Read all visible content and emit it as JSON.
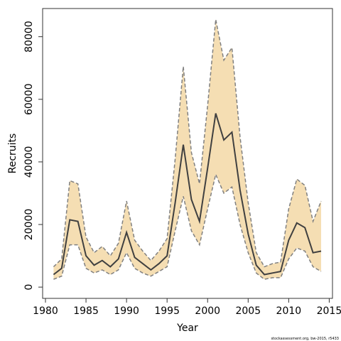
{
  "chart_data": {
    "type": "line",
    "xlabel": "Year",
    "ylabel": "Recruits",
    "footnote": "stockassessment.org, bw-2015, r5433",
    "x": [
      1981,
      1982,
      1983,
      1984,
      1985,
      1986,
      1987,
      1988,
      1989,
      1990,
      1991,
      1992,
      1993,
      1994,
      1995,
      1996,
      1997,
      1998,
      1999,
      2000,
      2001,
      2002,
      2003,
      2004,
      2005,
      2006,
      2007,
      2008,
      2009,
      2010,
      2011,
      2012,
      2013,
      2014
    ],
    "values": [
      4000,
      6000,
      21500,
      21000,
      10000,
      7000,
      8500,
      6500,
      9000,
      17500,
      9500,
      7500,
      5500,
      7500,
      10000,
      27000,
      45500,
      28000,
      21000,
      38000,
      55500,
      47000,
      49500,
      31000,
      17000,
      7000,
      4000,
      4500,
      5000,
      15000,
      20500,
      19000,
      11000,
      11500
    ],
    "lower": [
      2500,
      3500,
      13500,
      13500,
      6000,
      4500,
      5500,
      4000,
      5500,
      11000,
      6000,
      4500,
      3500,
      5000,
      6500,
      18000,
      29000,
      18000,
      13500,
      25000,
      36000,
      30000,
      32000,
      20000,
      11000,
      4500,
      2500,
      3000,
      3000,
      9000,
      12500,
      11500,
      6500,
      5000
    ],
    "upper": [
      6500,
      9000,
      34000,
      33000,
      16000,
      11000,
      13000,
      10000,
      14000,
      27500,
      15000,
      11500,
      8500,
      11500,
      15500,
      41000,
      70500,
      43000,
      33000,
      58000,
      85500,
      72500,
      76500,
      48000,
      27000,
      11000,
      6500,
      7500,
      8000,
      25000,
      34500,
      32500,
      21000,
      27500
    ],
    "color": "#404040",
    "bound_color": "#808080",
    "band_color": "#f5deb3",
    "xlim": [
      1979.65,
      2015.4
    ],
    "ylim": [
      -3600,
      89000
    ],
    "xticks": [
      1980,
      1985,
      1990,
      1995,
      2000,
      2005,
      2010,
      2015
    ],
    "yticks": [
      0,
      20000,
      40000,
      60000,
      80000
    ]
  }
}
